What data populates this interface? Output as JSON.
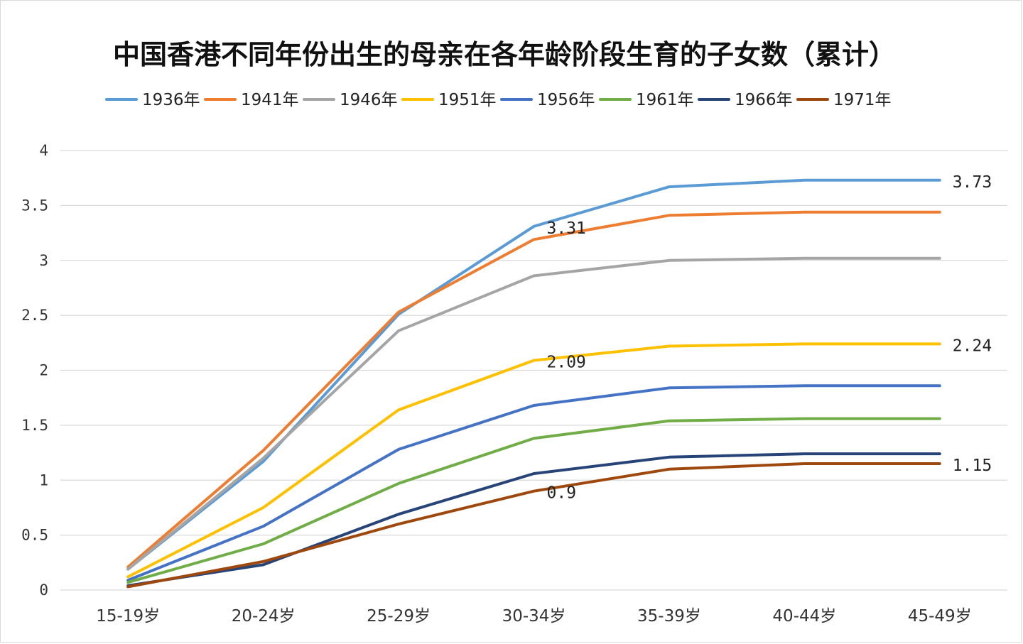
{
  "chart_data": {
    "type": "line",
    "title": "中国香港不同年份出生的母亲在各年龄阶段生育的子女数（累计）",
    "categories": [
      "15-19岁",
      "20-24岁",
      "25-29岁",
      "30-34岁",
      "35-39岁",
      "40-44岁",
      "45-49岁"
    ],
    "ylim": [
      0,
      4
    ],
    "yticks": [
      0,
      0.5,
      1,
      1.5,
      2,
      2.5,
      3,
      3.5,
      4
    ],
    "ytick_labels": [
      "0",
      "0.5",
      "1",
      "1.5",
      "2",
      "2.5",
      "3",
      "3.5",
      "4"
    ],
    "grid": true,
    "legend_position": "top",
    "series": [
      {
        "name": "1936年",
        "color": "#5b9bd5",
        "values": [
          0.19,
          1.17,
          2.51,
          3.31,
          3.67,
          3.73,
          3.73
        ]
      },
      {
        "name": "1941年",
        "color": "#ed7d31",
        "values": [
          0.21,
          1.27,
          2.53,
          3.19,
          3.41,
          3.44,
          3.44
        ]
      },
      {
        "name": "1946年",
        "color": "#a5a5a5",
        "values": [
          0.19,
          1.2,
          2.36,
          2.86,
          3.0,
          3.02,
          3.02
        ]
      },
      {
        "name": "1951年",
        "color": "#ffc000",
        "values": [
          0.12,
          0.75,
          1.64,
          2.09,
          2.22,
          2.24,
          2.24
        ]
      },
      {
        "name": "1956年",
        "color": "#4472c4",
        "values": [
          0.09,
          0.58,
          1.28,
          1.68,
          1.84,
          1.86,
          1.86
        ]
      },
      {
        "name": "1961年",
        "color": "#70ad47",
        "values": [
          0.07,
          0.42,
          0.97,
          1.38,
          1.54,
          1.56,
          1.56
        ]
      },
      {
        "name": "1966年",
        "color": "#264478",
        "values": [
          0.04,
          0.23,
          0.69,
          1.06,
          1.21,
          1.24,
          1.24
        ]
      },
      {
        "name": "1971年",
        "color": "#9e480e",
        "values": [
          0.03,
          0.26,
          0.6,
          0.9,
          1.1,
          1.15,
          1.15
        ]
      }
    ],
    "annotations": [
      {
        "text": "3.31",
        "category": "30-34岁",
        "value": 3.31,
        "series": "1936年"
      },
      {
        "text": "3.73",
        "category": "45-49岁",
        "value": 3.73,
        "series": "1936年"
      },
      {
        "text": "2.09",
        "category": "30-34岁",
        "value": 2.09,
        "series": "1951年"
      },
      {
        "text": "2.24",
        "category": "45-49岁",
        "value": 2.24,
        "series": "1951年"
      },
      {
        "text": "0.9",
        "category": "30-34岁",
        "value": 0.9,
        "series": "1971年"
      },
      {
        "text": "1.15",
        "category": "45-49岁",
        "value": 1.15,
        "series": "1971年"
      }
    ]
  }
}
